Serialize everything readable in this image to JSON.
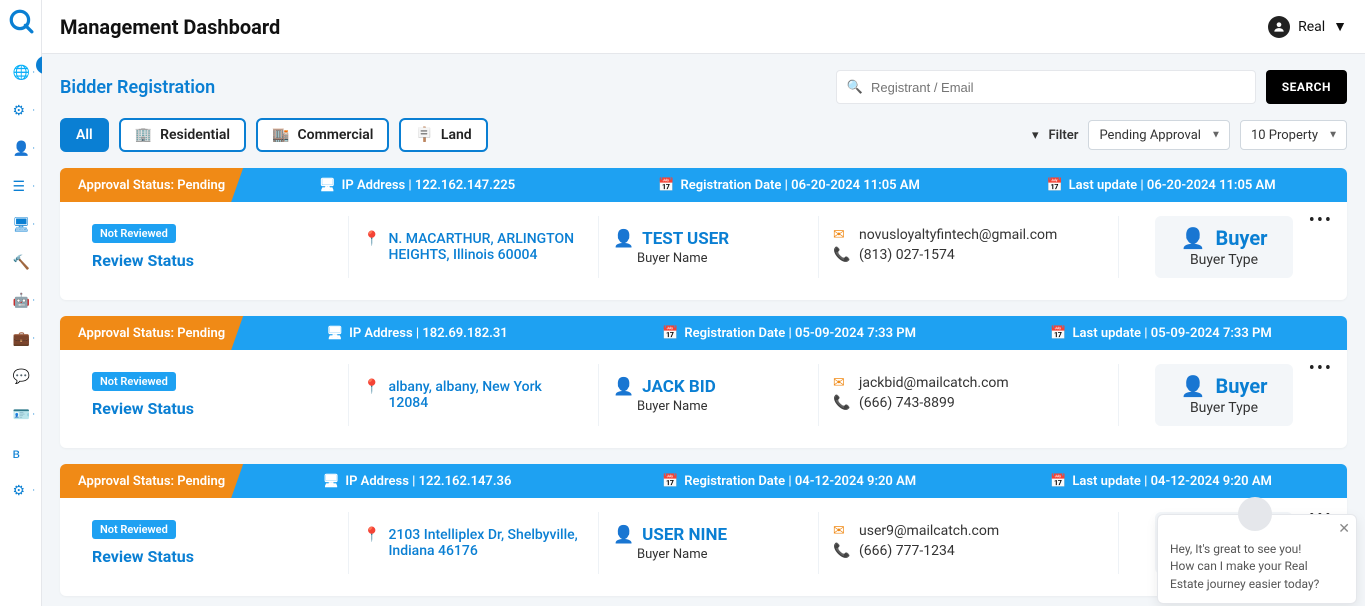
{
  "header": {
    "title": "Management Dashboard",
    "user_label": "Real"
  },
  "page": {
    "section_title": "Bidder Registration",
    "search_placeholder": "Registrant / Email",
    "search_button": "SEARCH",
    "filter_label": "Filter",
    "status_filter": "Pending Approval",
    "count_filter": "10 Property"
  },
  "tabs": [
    {
      "label": "All",
      "active": true
    },
    {
      "label": "Residential",
      "active": false,
      "icon": "building"
    },
    {
      "label": "Commercial",
      "active": false,
      "icon": "storefront"
    },
    {
      "label": "Land",
      "active": false,
      "icon": "signpost"
    }
  ],
  "colors": {
    "brand_blue": "#0a7fd3",
    "accent_blue": "#1ea1f2",
    "accent_orange": "#f08a16",
    "bg_panel": "#f3f6f9",
    "text_dark": "#111111",
    "border": "#e5e7eb",
    "black": "#000000"
  },
  "cards": [
    {
      "approval_status": "Approval Status: Pending",
      "ip_label": "IP Address | 122.162.147.225",
      "reg_label": "Registration Date | 06-20-2024 11:05 AM",
      "update_label": "Last update | 06-20-2024 11:05 AM",
      "review_badge": "Not Reviewed",
      "review_label": "Review Status",
      "address": "N. MACARTHUR, ARLINGTON HEIGHTS, Illinois 60004",
      "buyer_name": "TEST USER",
      "buyer_name_label": "Buyer Name",
      "email": "novusloyaltyfintech@gmail.com",
      "phone": "(813) 027-1574",
      "type_label": "Buyer",
      "type_sub": "Buyer Type"
    },
    {
      "approval_status": "Approval Status: Pending",
      "ip_label": "IP Address | 182.69.182.31",
      "reg_label": "Registration Date | 05-09-2024 7:33 PM",
      "update_label": "Last update | 05-09-2024 7:33 PM",
      "review_badge": "Not Reviewed",
      "review_label": "Review Status",
      "address": "albany, albany, New York 12084",
      "buyer_name": "JACK BID",
      "buyer_name_label": "Buyer Name",
      "email": "jackbid@mailcatch.com",
      "phone": "(666) 743-8899",
      "type_label": "Buyer",
      "type_sub": "Buyer Type"
    },
    {
      "approval_status": "Approval Status: Pending",
      "ip_label": "IP Address | 122.162.147.36",
      "reg_label": "Registration Date | 04-12-2024 9:20 AM",
      "update_label": "Last update | 04-12-2024 9:20 AM",
      "review_badge": "Not Reviewed",
      "review_label": "Review Status",
      "address": "2103 Intelliplex Dr, Shelbyville, Indiana 46176",
      "buyer_name": "USER NINE",
      "buyer_name_label": "Buyer Name",
      "email": "user9@mailcatch.com",
      "phone": "(666) 777-1234",
      "type_label": "Buyer",
      "type_sub": "Buyer Type"
    }
  ],
  "chat": {
    "line1": "Hey, It's great to see you!",
    "line2": "How can I make your Real",
    "line3": "Estate journey easier today?"
  },
  "sidebar_items": [
    "globe",
    "gear",
    "user",
    "list",
    "monitor",
    "gavel",
    "robot",
    "briefcase",
    "chat",
    "idcard",
    "blog",
    "gears"
  ]
}
